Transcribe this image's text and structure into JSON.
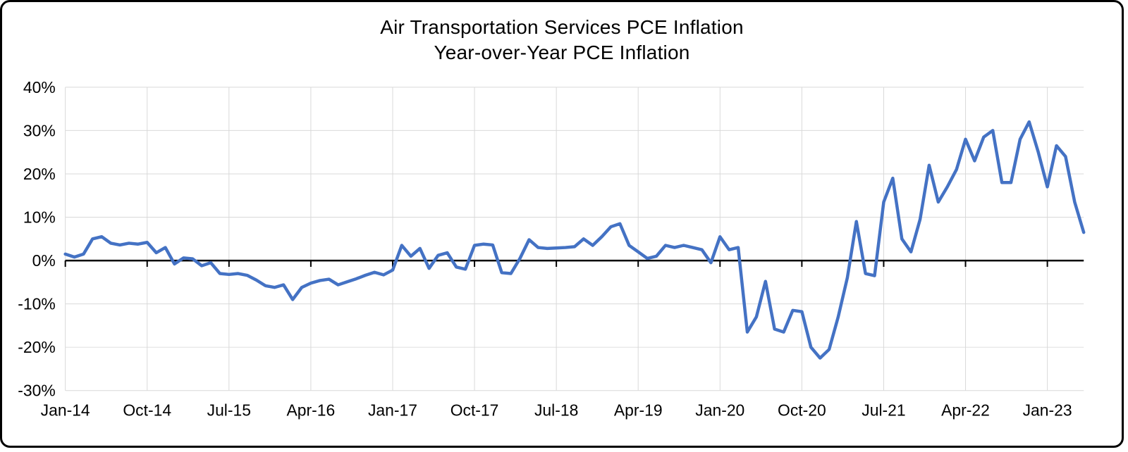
{
  "frame": {
    "background": "#ffffff",
    "border_color": "#000000"
  },
  "chart_data": {
    "type": "line",
    "title": "Air Transportation Services PCE Inflation",
    "subtitle": "Year-over-Year PCE Inflation",
    "grid": true,
    "legend": "none",
    "line_color": "#4472C4",
    "grid_color": "#d9d9d9",
    "axis_color": "#000000",
    "ylim": [
      -30,
      40
    ],
    "y_ticks": [
      40,
      30,
      20,
      10,
      0,
      -10,
      -20,
      -30
    ],
    "y_tick_suffix": "%",
    "x_tick_interval": 9,
    "x_tick_labels": [
      "Jan-14",
      "Oct-14",
      "Jul-15",
      "Apr-16",
      "Jan-17",
      "Oct-17",
      "Jul-18",
      "Apr-19",
      "Jan-20",
      "Oct-20",
      "Jul-21",
      "Apr-22",
      "Jan-23"
    ],
    "x": [
      "Jan-14",
      "Feb-14",
      "Mar-14",
      "Apr-14",
      "May-14",
      "Jun-14",
      "Jul-14",
      "Aug-14",
      "Sep-14",
      "Oct-14",
      "Nov-14",
      "Dec-14",
      "Jan-15",
      "Feb-15",
      "Mar-15",
      "Apr-15",
      "May-15",
      "Jun-15",
      "Jul-15",
      "Aug-15",
      "Sep-15",
      "Oct-15",
      "Nov-15",
      "Dec-15",
      "Jan-16",
      "Feb-16",
      "Mar-16",
      "Apr-16",
      "May-16",
      "Jun-16",
      "Jul-16",
      "Aug-16",
      "Sep-16",
      "Oct-16",
      "Nov-16",
      "Dec-16",
      "Jan-17",
      "Feb-17",
      "Mar-17",
      "Apr-17",
      "May-17",
      "Jun-17",
      "Jul-17",
      "Aug-17",
      "Sep-17",
      "Oct-17",
      "Nov-17",
      "Dec-17",
      "Jan-18",
      "Feb-18",
      "Mar-18",
      "Apr-18",
      "May-18",
      "Jun-18",
      "Jul-18",
      "Aug-18",
      "Sep-18",
      "Oct-18",
      "Nov-18",
      "Dec-18",
      "Jan-19",
      "Feb-19",
      "Mar-19",
      "Apr-19",
      "May-19",
      "Jun-19",
      "Jul-19",
      "Aug-19",
      "Sep-19",
      "Oct-19",
      "Nov-19",
      "Dec-19",
      "Jan-20",
      "Feb-20",
      "Mar-20",
      "Apr-20",
      "May-20",
      "Jun-20",
      "Jul-20",
      "Aug-20",
      "Sep-20",
      "Oct-20",
      "Nov-20",
      "Dec-20",
      "Jan-21",
      "Feb-21",
      "Mar-21",
      "Apr-21",
      "May-21",
      "Jun-21",
      "Jul-21",
      "Aug-21",
      "Sep-21",
      "Oct-21",
      "Nov-21",
      "Dec-21",
      "Jan-22",
      "Feb-22",
      "Mar-22",
      "Apr-22",
      "May-22",
      "Jun-22",
      "Jul-22",
      "Aug-22",
      "Sep-22",
      "Oct-22",
      "Nov-22",
      "Dec-22",
      "Jan-23",
      "Feb-23",
      "Mar-23",
      "Apr-23",
      "May-23"
    ],
    "series": [
      {
        "name": "Year-over-Year PCE Inflation",
        "color": "#4472C4",
        "values": [
          1.5,
          0.8,
          1.5,
          5.0,
          5.5,
          4.0,
          3.6,
          4.0,
          3.8,
          4.2,
          1.8,
          3.0,
          -0.8,
          0.6,
          0.4,
          -1.2,
          -0.5,
          -3.0,
          -3.2,
          -3.0,
          -3.4,
          -4.5,
          -5.8,
          -6.2,
          -5.6,
          -9.0,
          -6.2,
          -5.2,
          -4.6,
          -4.3,
          -5.6,
          -4.9,
          -4.2,
          -3.4,
          -2.7,
          -3.3,
          -2.2,
          3.5,
          1.0,
          2.8,
          -1.8,
          1.2,
          1.8,
          -1.5,
          -2.0,
          3.5,
          3.8,
          3.6,
          -2.8,
          -3.0,
          0.5,
          4.8,
          3.0,
          2.8,
          2.9,
          3.0,
          3.2,
          5.0,
          3.5,
          5.5,
          7.8,
          8.5,
          3.5,
          2.0,
          0.5,
          1.0,
          3.5,
          3.0,
          3.5,
          3.0,
          2.5,
          -0.5,
          5.5,
          2.5,
          3.0,
          -16.5,
          -13.0,
          -4.8,
          -15.8,
          -16.5,
          -11.5,
          -11.8,
          -20.0,
          -22.5,
          -20.5,
          -13.0,
          -4.0,
          9.0,
          -3.0,
          -3.5,
          13.5,
          19.0,
          5.0,
          2.0,
          9.5,
          22.0,
          13.5,
          17.0,
          21.0,
          28.0,
          23.0,
          28.5,
          30.0,
          18.0,
          18.0,
          28.0,
          32.0,
          25.0,
          17.0,
          26.5,
          24.0,
          13.5,
          6.5
        ]
      }
    ]
  }
}
